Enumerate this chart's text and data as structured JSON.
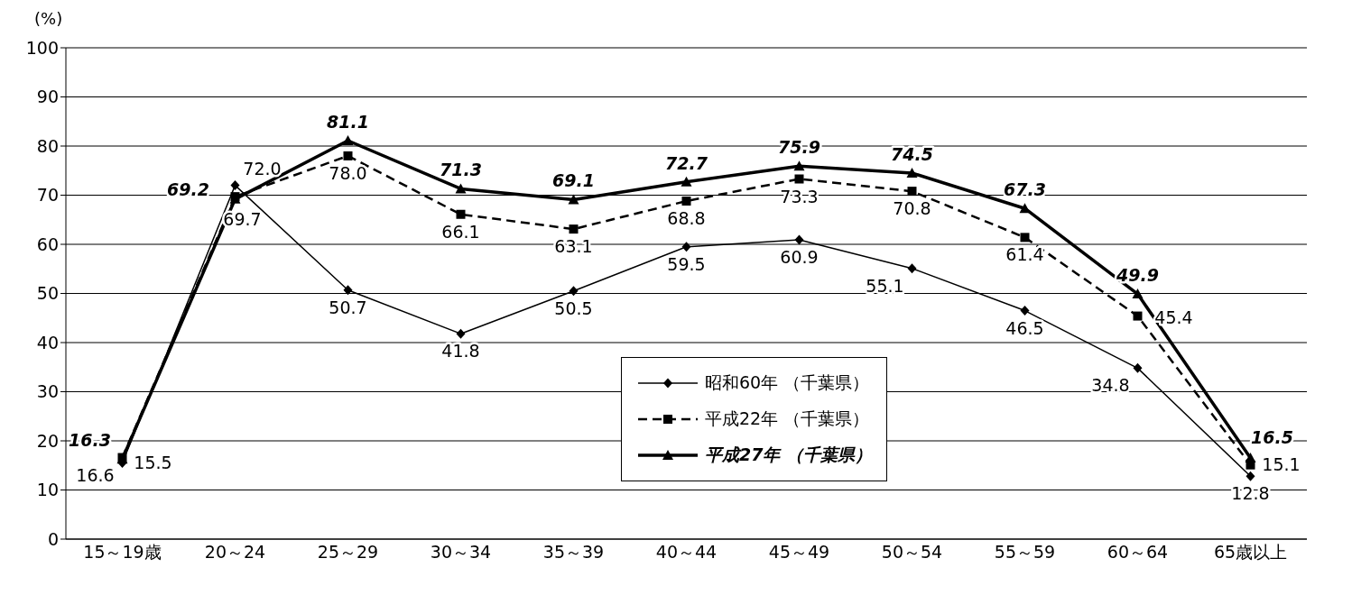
{
  "chart_data": {
    "type": "line",
    "ylabel": "(%)",
    "categories": [
      "15～19歳",
      "20～24",
      "25～29",
      "30～34",
      "35～39",
      "40～44",
      "45～49",
      "50～54",
      "55～59",
      "60～64",
      "65歳以上"
    ],
    "series": [
      {
        "name": "昭和60年 （千葉県）",
        "color": "#000000",
        "marker": "diamond",
        "line_style": "solid",
        "values": [
          15.5,
          72.0,
          50.7,
          41.8,
          50.5,
          59.5,
          60.9,
          55.1,
          46.5,
          34.8,
          12.8
        ],
        "value_labels": [
          "15.5",
          "72.0",
          "50.7",
          "41.8",
          "50.5",
          "59.5",
          "60.9",
          "55.1",
          "46.5",
          "34.8",
          "12.8"
        ]
      },
      {
        "name": "平成22年 （千葉県）",
        "color": "#000000",
        "marker": "square",
        "line_style": "dashed",
        "values": [
          16.6,
          69.7,
          78.0,
          66.1,
          63.1,
          68.8,
          73.3,
          70.8,
          61.4,
          45.4,
          15.1
        ],
        "value_labels": [
          "16.6",
          "69.7",
          "78.0",
          "66.1",
          "63.1",
          "68.8",
          "73.3",
          "70.8",
          "61.4",
          "45.4",
          "15.1"
        ]
      },
      {
        "name": "平成27年 （千葉県）",
        "color": "#000000",
        "marker": "triangle",
        "line_style": "solid",
        "values": [
          16.3,
          69.2,
          81.1,
          71.3,
          69.1,
          72.7,
          75.9,
          74.5,
          67.3,
          49.9,
          16.5
        ],
        "value_labels": [
          "16.3",
          "69.2",
          "81.1",
          "71.3",
          "69.1",
          "72.7",
          "75.9",
          "74.5",
          "67.3",
          "49.9",
          "16.5"
        ]
      }
    ],
    "ylim": [
      0,
      100
    ],
    "yticks": [
      0,
      10,
      20,
      30,
      40,
      50,
      60,
      70,
      80,
      90,
      100
    ],
    "grid": "y",
    "legend": "bottom"
  }
}
